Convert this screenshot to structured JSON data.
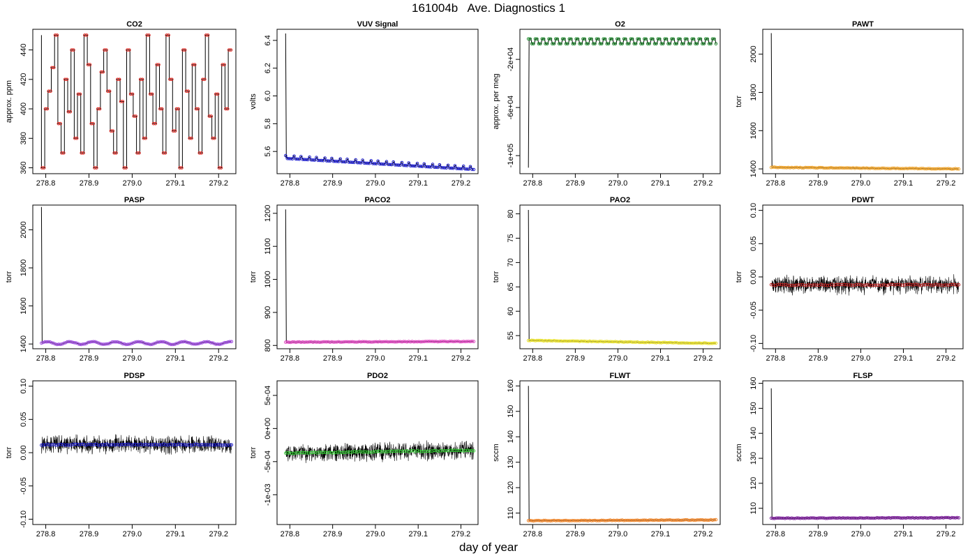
{
  "figure": {
    "title": "161004b   Ave. Diagnostics 1",
    "xlabel": "day of year"
  },
  "chart_data": [
    {
      "type": "line",
      "title": "CO2",
      "ylabel": "approx. ppm",
      "xlim": [
        278.77,
        279.24
      ],
      "ylim": [
        356,
        454
      ],
      "xticks": [
        "278.8",
        "278.9",
        "279.0",
        "279.1",
        "279.2"
      ],
      "yticks": [
        "360",
        "380",
        "400",
        "420",
        "440"
      ],
      "marker_color": "#e0201a",
      "pattern": "co2_steps",
      "series": [
        {
          "x": [
            278.79,
            279.23
          ],
          "values": [
            360,
            450
          ]
        }
      ]
    },
    {
      "type": "line",
      "title": "VUV Signal",
      "ylabel": "volts",
      "xlim": [
        278.77,
        279.24
      ],
      "ylim": [
        5.44,
        6.48
      ],
      "xticks": [
        "278.8",
        "278.9",
        "279.0",
        "279.1",
        "279.2"
      ],
      "yticks": [
        "5.6",
        "5.8",
        "6.0",
        "6.2",
        "6.4"
      ],
      "marker_color": "#1a1ad0",
      "spike": 6.45,
      "series": [
        {
          "x": [
            278.79,
            279.23
          ],
          "values": [
            5.55,
            5.47
          ]
        }
      ]
    },
    {
      "type": "line",
      "title": "O2",
      "ylabel": "approx. per meg",
      "xlim": [
        278.77,
        279.24
      ],
      "ylim": [
        -115000,
        5000
      ],
      "xticks": [
        "278.8",
        "278.9",
        "279.0",
        "279.1",
        "279.2"
      ],
      "yticks": [
        "-1e+05",
        "-6e+04",
        "-2e+04"
      ],
      "ytick_values": [
        -100000,
        -60000,
        -20000
      ],
      "marker_color": "#1a8a2a",
      "spike": -110000,
      "series": [
        {
          "x": [
            278.79,
            279.23
          ],
          "values": [
            -3000,
            -3000
          ]
        }
      ]
    },
    {
      "type": "line",
      "title": "PAWT",
      "ylabel": "torr",
      "xlim": [
        278.77,
        279.24
      ],
      "ylim": [
        1375,
        2130
      ],
      "xticks": [
        "278.8",
        "278.9",
        "279.0",
        "279.1",
        "279.2"
      ],
      "yticks": [
        "1400",
        "1600",
        "1800",
        "2000"
      ],
      "marker_color": "#f0a020",
      "spike": 2110,
      "series": [
        {
          "x": [
            278.79,
            279.23
          ],
          "values": [
            1408,
            1400
          ]
        }
      ]
    },
    {
      "type": "line",
      "title": "PASP",
      "ylabel": "torr",
      "xlim": [
        278.77,
        279.24
      ],
      "ylim": [
        1375,
        2130
      ],
      "xticks": [
        "278.8",
        "278.9",
        "279.0",
        "279.1",
        "279.2"
      ],
      "yticks": [
        "1400",
        "1600",
        "1800",
        "2000"
      ],
      "marker_color": "#9a40e0",
      "spike": 2120,
      "pattern": "wave",
      "series": [
        {
          "x": [
            278.79,
            279.23
          ],
          "values": [
            1405,
            1405
          ]
        }
      ]
    },
    {
      "type": "line",
      "title": "PACO2",
      "ylabel": "torr",
      "xlim": [
        278.77,
        279.24
      ],
      "ylim": [
        790,
        1225
      ],
      "xticks": [
        "278.8",
        "278.9",
        "279.0",
        "279.1",
        "279.2"
      ],
      "yticks": [
        "800",
        "900",
        "1000",
        "1100",
        "1200"
      ],
      "marker_color": "#e040c0",
      "spike": 1212,
      "series": [
        {
          "x": [
            278.79,
            279.23
          ],
          "values": [
            810,
            812
          ]
        }
      ]
    },
    {
      "type": "line",
      "title": "PAO2",
      "ylabel": "torr",
      "xlim": [
        278.77,
        279.24
      ],
      "ylim": [
        52.3,
        81.8
      ],
      "xticks": [
        "278.8",
        "278.9",
        "279.0",
        "279.1",
        "279.2"
      ],
      "yticks": [
        "55",
        "60",
        "65",
        "70",
        "75",
        "80"
      ],
      "marker_color": "#e8e020",
      "spike": 80.8,
      "series": [
        {
          "x": [
            278.79,
            279.23
          ],
          "values": [
            54.0,
            53.4
          ]
        }
      ]
    },
    {
      "type": "line",
      "title": "PDWT",
      "ylabel": "torr",
      "xlim": [
        278.77,
        279.24
      ],
      "ylim": [
        -0.108,
        0.108
      ],
      "xticks": [
        "278.8",
        "278.9",
        "279.0",
        "279.1",
        "279.2"
      ],
      "yticks": [
        "-0.10",
        "-0.05",
        "0.00",
        "0.05",
        "0.10"
      ],
      "marker_color": "#c02020",
      "noise": 0.011,
      "series": [
        {
          "x": [
            278.79,
            279.23
          ],
          "values": [
            -0.012,
            -0.012
          ]
        }
      ]
    },
    {
      "type": "line",
      "title": "PDSP",
      "ylabel": "torr",
      "xlim": [
        278.77,
        279.24
      ],
      "ylim": [
        -0.108,
        0.108
      ],
      "xticks": [
        "278.8",
        "278.9",
        "279.0",
        "279.1",
        "279.2"
      ],
      "yticks": [
        "-0.10",
        "-0.05",
        "0.00",
        "0.05",
        "0.10"
      ],
      "marker_color": "#1a1ad0",
      "noise": 0.011,
      "series": [
        {
          "x": [
            278.79,
            279.23
          ],
          "values": [
            0.012,
            0.012
          ]
        }
      ]
    },
    {
      "type": "line",
      "title": "PDO2",
      "ylabel": "torr",
      "xlim": [
        278.77,
        279.24
      ],
      "ylim": [
        -0.00145,
        0.00072
      ],
      "xticks": [
        "278.8",
        "278.9",
        "279.0",
        "279.1",
        "279.2"
      ],
      "yticks": [
        "-1e-03",
        "-5e-04",
        "0e+00",
        "5e-04"
      ],
      "ytick_values": [
        -0.001,
        -0.0005,
        0,
        0.0005
      ],
      "marker_color": "#30d030",
      "noise": 0.00011,
      "series": [
        {
          "x": [
            278.79,
            279.23
          ],
          "values": [
            -0.00037,
            -0.00033
          ]
        }
      ]
    },
    {
      "type": "line",
      "title": "FLWT",
      "ylabel": "sccm",
      "xlim": [
        278.77,
        279.24
      ],
      "ylim": [
        105.5,
        162
      ],
      "xticks": [
        "278.8",
        "278.9",
        "279.0",
        "279.1",
        "279.2"
      ],
      "yticks": [
        "110",
        "120",
        "130",
        "140",
        "150",
        "160"
      ],
      "marker_color": "#f08020",
      "spike": 160,
      "series": [
        {
          "x": [
            278.79,
            279.23
          ],
          "values": [
            107.0,
            107.3
          ]
        }
      ]
    },
    {
      "type": "line",
      "title": "FLSP",
      "ylabel": "sccm",
      "xlim": [
        278.77,
        279.24
      ],
      "ylim": [
        103.5,
        161
      ],
      "xticks": [
        "278.8",
        "278.9",
        "279.0",
        "279.1",
        "279.2"
      ],
      "yticks": [
        "110",
        "120",
        "130",
        "140",
        "150",
        "160"
      ],
      "marker_color": "#7a1a9a",
      "spike": 158,
      "series": [
        {
          "x": [
            278.79,
            279.23
          ],
          "values": [
            106.0,
            106.2
          ]
        }
      ]
    }
  ]
}
